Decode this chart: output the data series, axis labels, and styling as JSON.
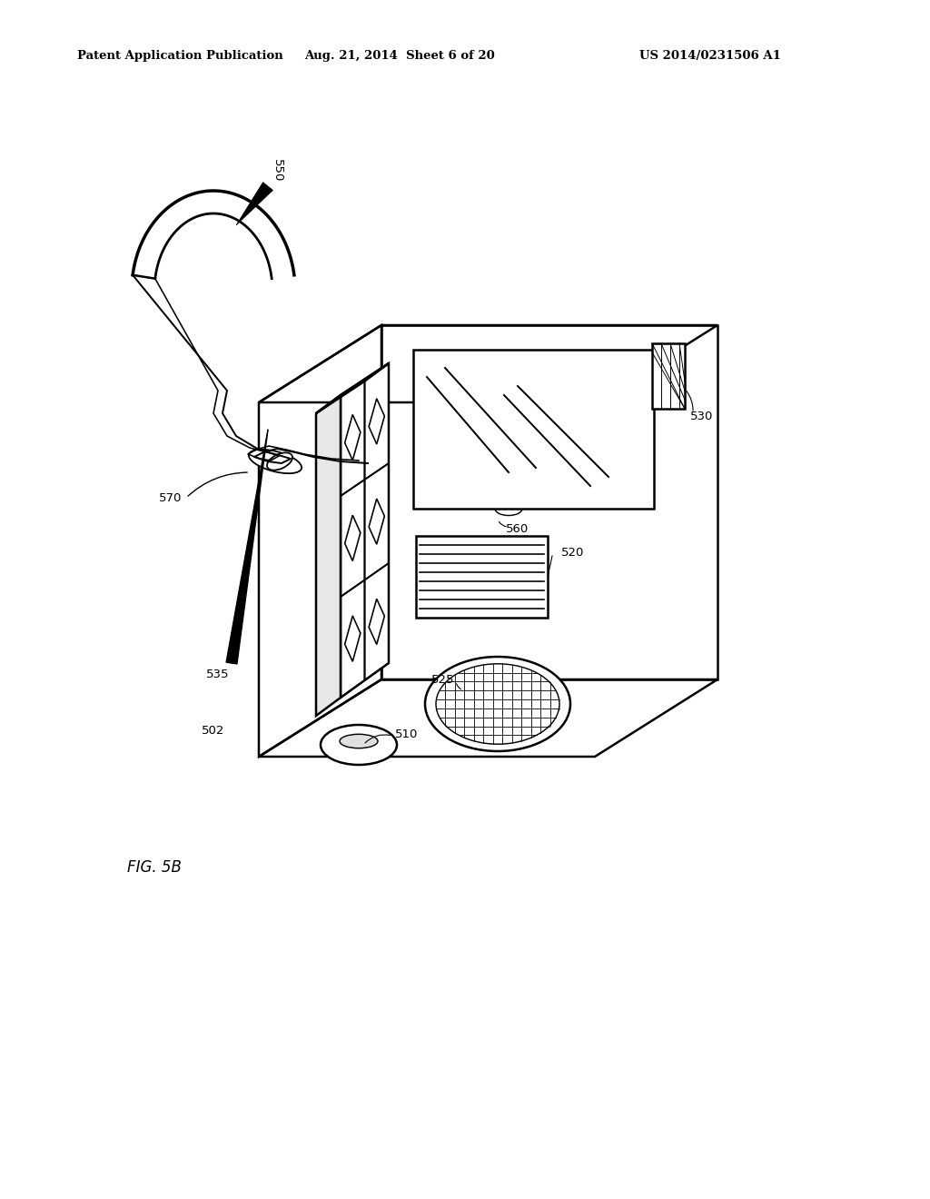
{
  "bg_color": "#ffffff",
  "line_color": "#000000",
  "header_left": "Patent Application Publication",
  "header_center": "Aug. 21, 2014  Sheet 6 of 20",
  "header_right": "US 2014/0231506 A1",
  "figure_label": "FIG. 5B"
}
